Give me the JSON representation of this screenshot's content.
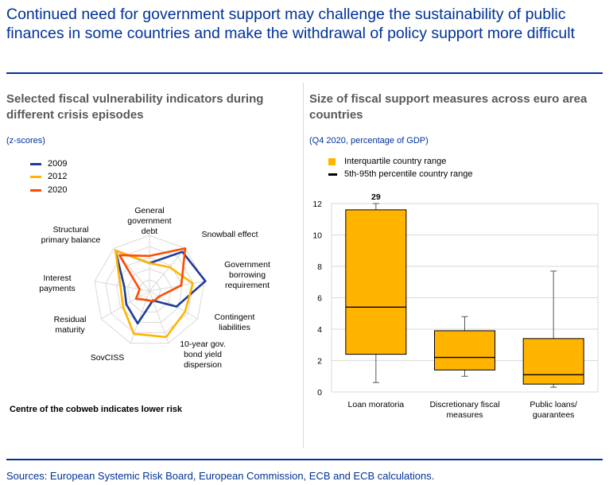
{
  "page": {
    "title": "Continued need for government support may challenge the sustainability of public finances in some countries and make the withdrawal of policy support more difficult",
    "source": "Sources: European Systemic Risk Board, European Commission, ECB and ECB calculations."
  },
  "colors": {
    "title": "#003299",
    "s2009": "#1f3c99",
    "s2012": "#ffb400",
    "s2020": "#ff4b00",
    "box": "#ffb400",
    "whisker": "#000000",
    "grid": "#d9d9d9"
  },
  "left_panel": {
    "title": "Selected fiscal vulnerability indicators during different crisis episodes",
    "unit": "(z-scores)",
    "note": "Centre of the cobweb indicates lower risk",
    "legend": [
      "2009",
      "2012",
      "2020"
    ]
  },
  "right_panel": {
    "title": "Size of fiscal support measures across euro area countries",
    "unit": "(Q4 2020, percentage of GDP)",
    "legend": [
      "Interquartile country range",
      "5th-95th percentile country range"
    ]
  },
  "chart_data": [
    {
      "type": "radar",
      "title": "Selected fiscal vulnerability indicators during different crisis episodes",
      "unit": "(z-scores)",
      "axes": [
        [
          "General",
          "government",
          "debt"
        ],
        [
          "Snowball effect"
        ],
        [
          "Government",
          "borrowing",
          "requirement"
        ],
        [
          "Contingent",
          "liabilities"
        ],
        [
          "10-year gov.",
          "bond yield",
          "dispersion"
        ],
        [
          "SovCISS"
        ],
        [
          "Residual",
          "maturity"
        ],
        [
          "Interest",
          "payments"
        ],
        [
          "Structural",
          "primary balance"
        ]
      ],
      "levels": 5,
      "series": [
        {
          "name": "2009",
          "values": [
            0.5,
            0.92,
            1.02,
            0.56,
            0.18,
            0.62,
            0.48,
            0.46,
            0.95
          ]
        },
        {
          "name": "2012",
          "values": [
            0.5,
            0.56,
            0.79,
            0.74,
            0.88,
            0.82,
            0.55,
            0.53,
            0.95
          ]
        },
        {
          "name": "2020",
          "values": [
            0.63,
            1.0,
            0.58,
            0.2,
            0.2,
            0.17,
            0.28,
            0.18,
            0.84
          ]
        }
      ]
    },
    {
      "type": "box",
      "title": "Size of fiscal support measures across euro area countries",
      "unit": "(Q4 2020, percentage of GDP)",
      "categories": [
        [
          "Loan moratoria"
        ],
        [
          "Discretionary fiscal",
          "measures"
        ],
        [
          "Public loans/",
          "guarantees"
        ]
      ],
      "q1": [
        2.4,
        1.4,
        0.5
      ],
      "median": [
        5.4,
        2.2,
        1.1
      ],
      "q3": [
        11.6,
        3.9,
        3.4
      ],
      "p5": [
        0.6,
        1.0,
        0.3
      ],
      "p95": [
        29,
        4.8,
        7.7
      ],
      "annotations": [
        "29",
        "",
        ""
      ],
      "ylim": [
        0,
        12
      ],
      "yticks": [
        0,
        2,
        4,
        6,
        8,
        10,
        12
      ],
      "legend": [
        "Interquartile country range",
        "5th-95th percentile country range"
      ]
    }
  ]
}
